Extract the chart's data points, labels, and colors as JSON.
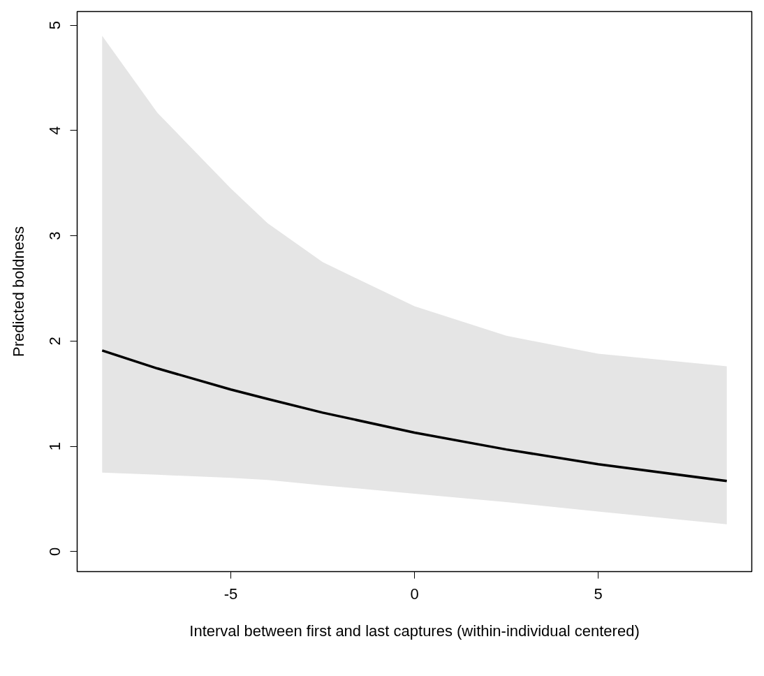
{
  "chart_data": {
    "type": "line",
    "xlabel": "Interval between first and last captures (within-individual centered)",
    "ylabel": "Predicted boldness",
    "x": [
      -8.5,
      -7,
      -5,
      -4,
      -2.5,
      0,
      2.5,
      5,
      8.5
    ],
    "series": [
      {
        "color": "#000000",
        "values": [
          1.91,
          1.74,
          1.54,
          1.45,
          1.32,
          1.13,
          0.97,
          0.83,
          0.67
        ],
        "lower": [
          0.75,
          0.73,
          0.7,
          0.68,
          0.63,
          0.55,
          0.47,
          0.38,
          0.26
        ],
        "upper": [
          4.9,
          4.17,
          3.45,
          3.12,
          2.75,
          2.33,
          2.05,
          1.88,
          1.76
        ]
      }
    ],
    "xlim": [
      -9.18,
      9.18
    ],
    "ylim": [
      -0.19,
      5.13
    ],
    "xticks": [
      -5,
      0,
      5
    ],
    "yticks": [
      0,
      1,
      2,
      3,
      4,
      5
    ],
    "grid": false,
    "line_style": "solid",
    "marker": "none"
  }
}
